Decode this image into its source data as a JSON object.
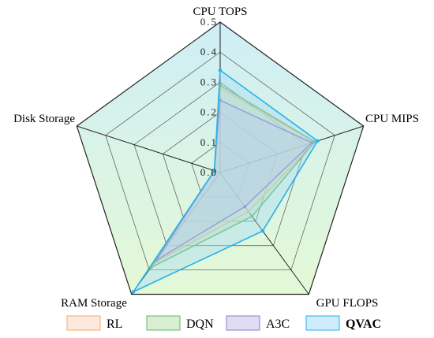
{
  "chart_data": {
    "type": "radar",
    "axes": [
      "CPU TOPS",
      "CPU MIPS",
      "GPU FLOPS",
      "RAM Storage",
      "Disk Storage"
    ],
    "ticks": [
      "0.0",
      "0.1",
      "0.2",
      "0.3",
      "0.4",
      "0.5"
    ],
    "rmax": 0.5,
    "grid": true,
    "legend_position": "bottom",
    "background_gradient": [
      "#cfeef6",
      "#e4f9d6"
    ],
    "series": [
      {
        "name": "RL",
        "values": [
          0.28,
          0.33,
          0.16,
          0.37,
          0.02
        ],
        "color": "#f4a770",
        "fill": "#fbd9c0",
        "legend_bold": false
      },
      {
        "name": "DQN",
        "values": [
          0.29,
          0.33,
          0.18,
          0.39,
          0.02
        ],
        "color": "#67b565",
        "fill": "#b9e2b0",
        "legend_bold": false
      },
      {
        "name": "A3C",
        "values": [
          0.24,
          0.32,
          0.14,
          0.36,
          0.02
        ],
        "color": "#8a7cc9",
        "fill": "#c8c0ea",
        "legend_bold": false
      },
      {
        "name": "QVAC",
        "values": [
          0.34,
          0.34,
          0.24,
          0.49,
          0.02
        ],
        "color": "#2ab0ec",
        "fill": "#a6dcf4",
        "legend_bold": true
      }
    ]
  }
}
